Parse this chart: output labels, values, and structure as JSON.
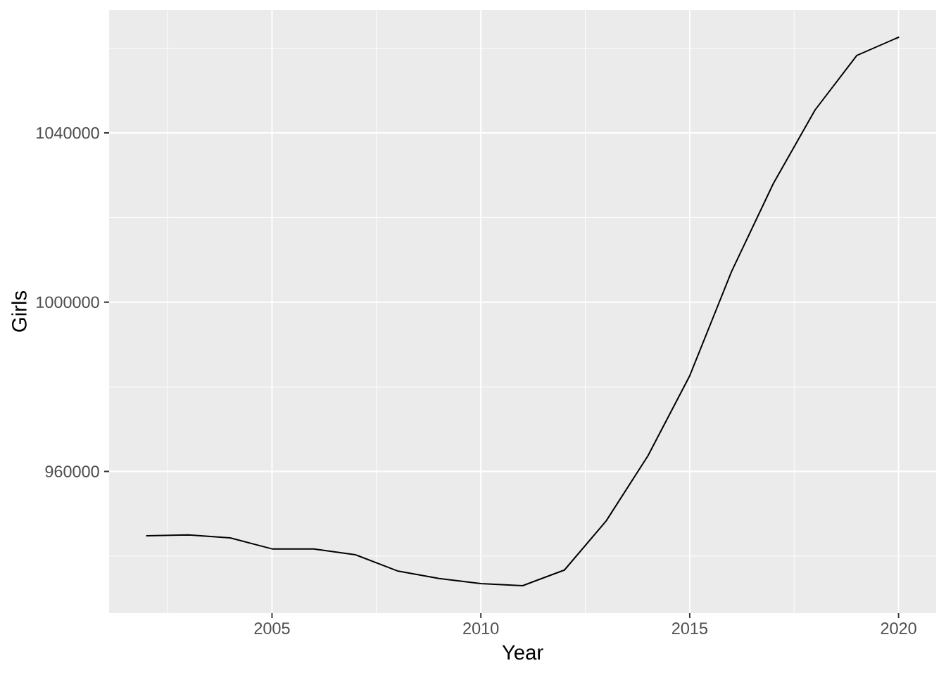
{
  "chart_data": {
    "type": "line",
    "xlabel": "Year",
    "ylabel": "Girls",
    "x": [
      2002,
      2003,
      2004,
      2005,
      2006,
      2007,
      2008,
      2009,
      2010,
      2011,
      2012,
      2013,
      2014,
      2015,
      2016,
      2017,
      2018,
      2019,
      2020
    ],
    "values": [
      944800,
      945000,
      944300,
      941700,
      941700,
      940300,
      936500,
      934700,
      933500,
      933000,
      936700,
      948300,
      963700,
      982600,
      1007200,
      1028000,
      1045400,
      1058300,
      1062600
    ],
    "color": "#000000",
    "line_style": "solid",
    "marker": "none",
    "grid": true,
    "xlim": [
      2001.1,
      2020.9
    ],
    "ylim": [
      926520,
      1069080
    ],
    "xticks": [
      {
        "value": 2002.5,
        "label": null
      },
      2005,
      {
        "value": 2007.5,
        "label": null
      },
      2010,
      {
        "value": 2012.5,
        "label": null
      },
      2015,
      {
        "value": 2017.5,
        "label": null
      },
      2020
    ],
    "yticks": [
      {
        "value": 940000,
        "label": null
      },
      960000,
      {
        "value": 980000,
        "label": null
      },
      1000000,
      {
        "value": 1020000,
        "label": null
      },
      1040000,
      {
        "value": 1060000,
        "label": null
      }
    ]
  }
}
